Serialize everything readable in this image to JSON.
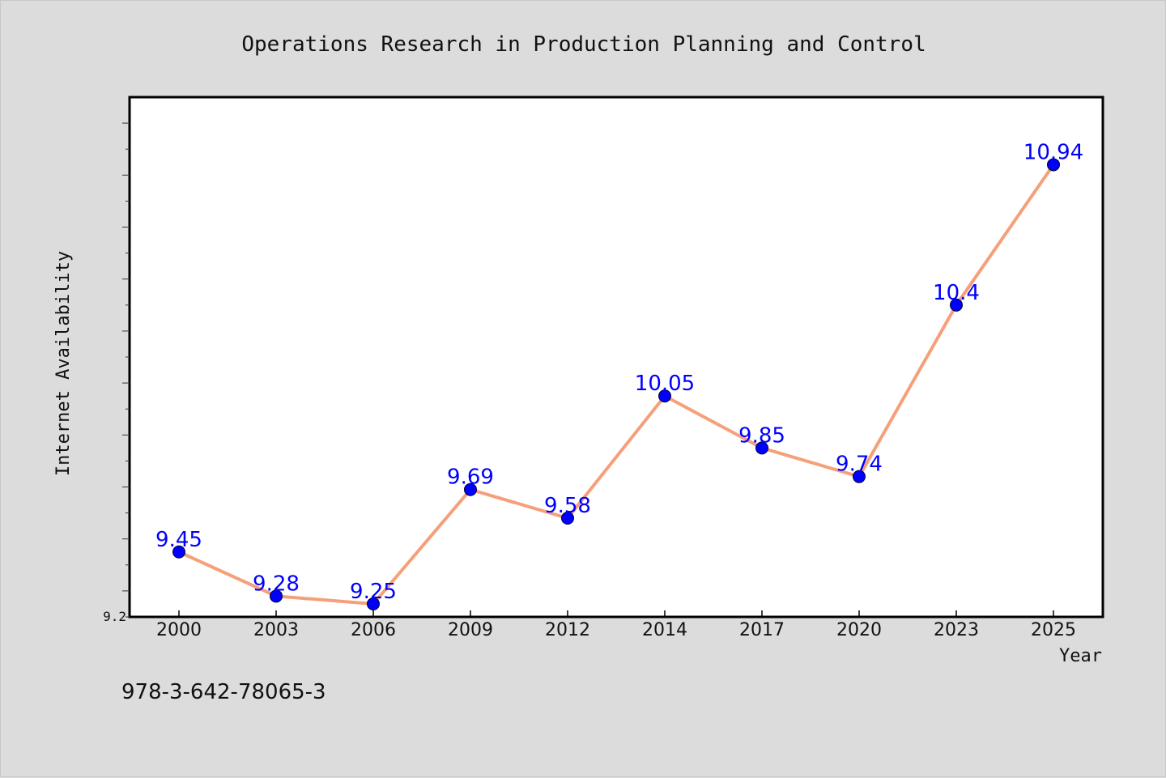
{
  "chart_data": {
    "type": "line",
    "title": "Operations Research in Production Planning and Control",
    "xlabel": "Year",
    "ylabel": "Internet Availability",
    "categories": [
      "2000",
      "2003",
      "2006",
      "2009",
      "2012",
      "2014",
      "2017",
      "2020",
      "2023",
      "2025"
    ],
    "series": [
      {
        "values": [
          9.45,
          9.28,
          9.25,
          9.69,
          9.58,
          10.05,
          9.85,
          9.74,
          10.4,
          10.94
        ]
      }
    ],
    "data_labels": [
      "9.45",
      "9.28",
      "9.25",
      "9.69",
      "9.58",
      "10.05",
      "9.85",
      "9.74",
      "10.4",
      "10.94"
    ],
    "ylim": [
      9.2,
      11.2
    ],
    "ytick_labels": [
      "9.2"
    ],
    "grid": false,
    "colors": {
      "line": "#f5a07a",
      "marker": "#0000ff",
      "data_label": "#0000ff",
      "background": "#dcdcdc",
      "plot_background": "#ffffff"
    }
  },
  "footnote": "978-3-642-78065-3"
}
